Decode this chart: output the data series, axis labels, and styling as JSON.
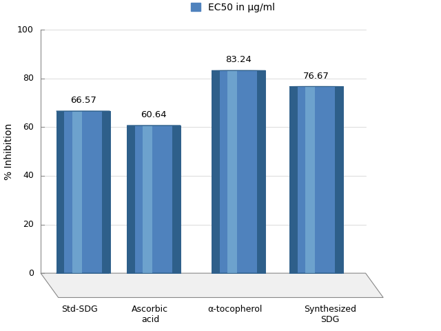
{
  "categories": [
    "Std-SDG",
    "Ascorbic\nacid",
    "α-tocopherol",
    "Synthesized\nSDG"
  ],
  "values": [
    66.57,
    60.64,
    83.24,
    76.67
  ],
  "bar_color_main": "#4f82bd",
  "bar_color_light": "#7ab0d4",
  "bar_color_dark": "#2e5f8a",
  "bar_color_top": "#5a9ac5",
  "ylabel": "% Inhibition",
  "legend_label": "EC50 in μg/ml",
  "ylim": [
    0,
    100
  ],
  "yticks": [
    0,
    20,
    40,
    60,
    80,
    100
  ],
  "value_labels": [
    "66.57",
    "60.64",
    "83.24",
    "76.67"
  ],
  "background_color": "#ffffff"
}
